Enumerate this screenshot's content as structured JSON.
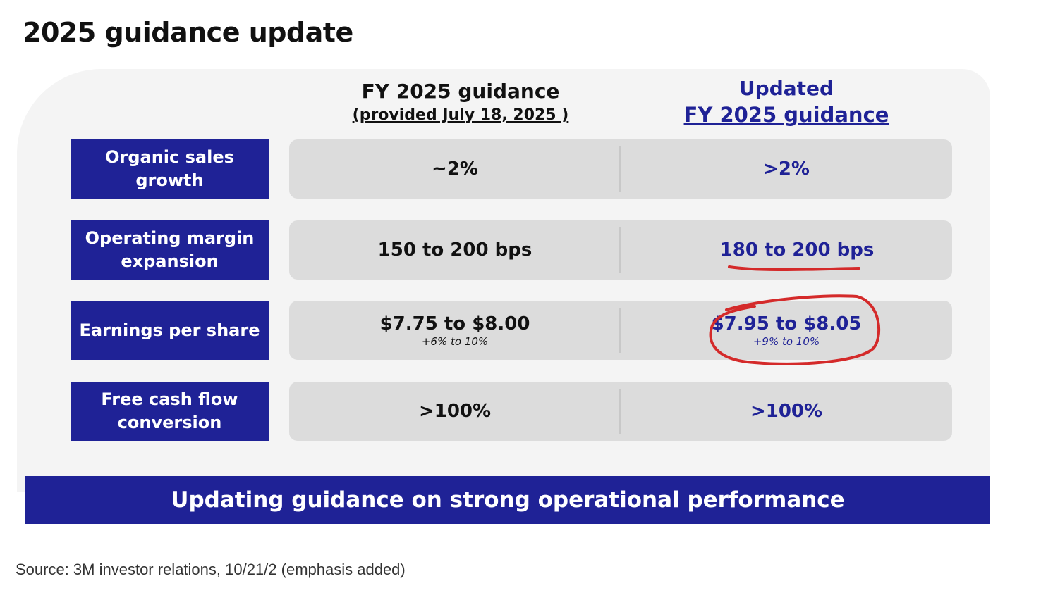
{
  "title": "2025 guidance update",
  "columns": {
    "fy2025": {
      "line1": "FY 2025 guidance",
      "line2": "(provided July 18, 2025 )"
    },
    "updated": {
      "line1": "Updated",
      "line2": "FY 2025 guidance"
    }
  },
  "rows": [
    {
      "label": "Organic sales growth",
      "fy": "~2%",
      "updated": ">2%"
    },
    {
      "label": "Operating margin expansion",
      "fy": "150 to 200 bps",
      "updated": "180 to 200 bps"
    },
    {
      "label": "Earnings per share",
      "fy": "$7.75 to $8.00",
      "fy_sub": "+6% to 10%",
      "updated": "$7.95 to $8.05",
      "updated_sub": "+9% to 10%"
    },
    {
      "label": "Free cash flow conversion",
      "fy": ">100%",
      "updated": ">100%"
    }
  ],
  "banner": "Updating guidance on strong operational performance",
  "source": "Source: 3M investor relations, 10/21/2 (emphasis added)",
  "colors": {
    "brand": "#1f2296",
    "annotation": "#d42a2a"
  }
}
